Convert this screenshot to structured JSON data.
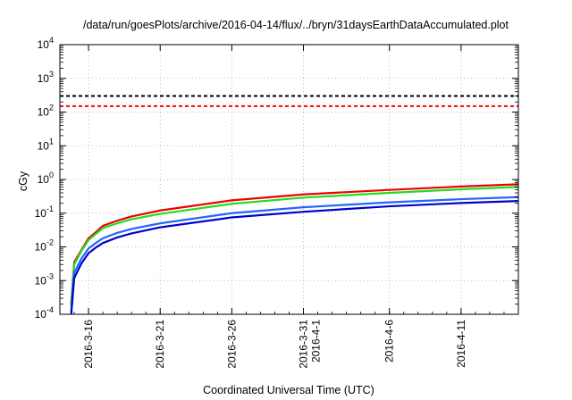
{
  "chart_data": {
    "type": "line",
    "title": "/data/run/goesPlots/archive/2016-04-14/flux/../bryn/31daysEarthDataAccumulated.plot",
    "xlabel": "Coordinated Universal Time (UTC)",
    "ylabel": "cGy",
    "x_range": [
      "2016-03-14",
      "2016-04-15"
    ],
    "y_scale": "log",
    "ylim": [
      0.0001,
      10000
    ],
    "grid": true,
    "x_ticks": [
      {
        "date": "2016-03-16",
        "lines": [
          "2016-3-16"
        ]
      },
      {
        "date": "2016-03-21",
        "lines": [
          "2016-3-21"
        ]
      },
      {
        "date": "2016-03-26",
        "lines": [
          "2016-3-26"
        ]
      },
      {
        "date": "2016-03-31",
        "lines": [
          "2016-3-31",
          "2016-4-1"
        ]
      },
      {
        "date": "2016-04-06",
        "lines": [
          "2016-4-6"
        ]
      },
      {
        "date": "2016-04-11",
        "lines": [
          "2016-4-11"
        ]
      }
    ],
    "y_ticks": [
      {
        "value": 0.0001,
        "base": "10",
        "exp": "-4"
      },
      {
        "value": 0.001,
        "base": "10",
        "exp": "-3"
      },
      {
        "value": 0.01,
        "base": "10",
        "exp": "-2"
      },
      {
        "value": 0.1,
        "base": "10",
        "exp": "-1"
      },
      {
        "value": 1,
        "base": "10",
        "exp": "0"
      },
      {
        "value": 10,
        "base": "10",
        "exp": "1"
      },
      {
        "value": 100,
        "base": "10",
        "exp": "2"
      },
      {
        "value": 1000,
        "base": "10",
        "exp": "3"
      },
      {
        "value": 10000,
        "base": "10",
        "exp": "4"
      }
    ],
    "reference_lines": [
      {
        "value": 300,
        "color": "#000000",
        "style": "dashed"
      },
      {
        "value": 150,
        "color": "#ff0000",
        "style": "dashed"
      }
    ],
    "series": [
      {
        "color": "#ee0000",
        "x": [
          "2016-03-14T19:00",
          "2016-03-15T00:00",
          "2016-03-15T12:00",
          "2016-03-16T00:00",
          "2016-03-16T12:00",
          "2016-03-17T00:00",
          "2016-03-18T00:00",
          "2016-03-19T00:00",
          "2016-03-21T00:00",
          "2016-03-26T00:00",
          "2016-03-31T00:00",
          "2016-04-06T00:00",
          "2016-04-11T00:00",
          "2016-04-15T00:00"
        ],
        "y": [
          0.0002,
          0.0035,
          0.008,
          0.018,
          0.027,
          0.042,
          0.06,
          0.08,
          0.12,
          0.24,
          0.36,
          0.49,
          0.62,
          0.72
        ]
      },
      {
        "color": "#22dd22",
        "x": [
          "2016-03-14T19:00",
          "2016-03-15T00:00",
          "2016-03-15T12:00",
          "2016-03-16T00:00",
          "2016-03-16T12:00",
          "2016-03-17T00:00",
          "2016-03-18T00:00",
          "2016-03-19T00:00",
          "2016-03-21T00:00",
          "2016-03-26T00:00",
          "2016-03-31T00:00",
          "2016-04-06T00:00",
          "2016-04-11T00:00",
          "2016-04-15T00:00"
        ],
        "y": [
          0.00018,
          0.003,
          0.0075,
          0.016,
          0.024,
          0.036,
          0.05,
          0.066,
          0.095,
          0.19,
          0.29,
          0.4,
          0.51,
          0.6
        ]
      },
      {
        "color": "#2266ff",
        "x": [
          "2016-03-14T19:00",
          "2016-03-15T00:00",
          "2016-03-15T12:00",
          "2016-03-16T00:00",
          "2016-03-16T12:00",
          "2016-03-17T00:00",
          "2016-03-18T00:00",
          "2016-03-19T00:00",
          "2016-03-21T00:00",
          "2016-03-26T00:00",
          "2016-03-31T00:00",
          "2016-04-06T00:00",
          "2016-04-11T00:00",
          "2016-04-15T00:00"
        ],
        "y": [
          0.00012,
          0.0017,
          0.0045,
          0.009,
          0.013,
          0.018,
          0.026,
          0.034,
          0.05,
          0.1,
          0.15,
          0.21,
          0.26,
          0.3
        ]
      },
      {
        "color": "#0000cc",
        "x": [
          "2016-03-14T19:00",
          "2016-03-15T00:00",
          "2016-03-15T12:00",
          "2016-03-16T00:00",
          "2016-03-16T12:00",
          "2016-03-17T00:00",
          "2016-03-18T00:00",
          "2016-03-19T00:00",
          "2016-03-21T00:00",
          "2016-03-26T00:00",
          "2016-03-31T00:00",
          "2016-04-06T00:00",
          "2016-04-11T00:00",
          "2016-04-15T00:00"
        ],
        "y": [
          0.0001,
          0.0012,
          0.0032,
          0.0065,
          0.0095,
          0.013,
          0.019,
          0.025,
          0.038,
          0.075,
          0.11,
          0.16,
          0.2,
          0.23
        ]
      }
    ]
  }
}
